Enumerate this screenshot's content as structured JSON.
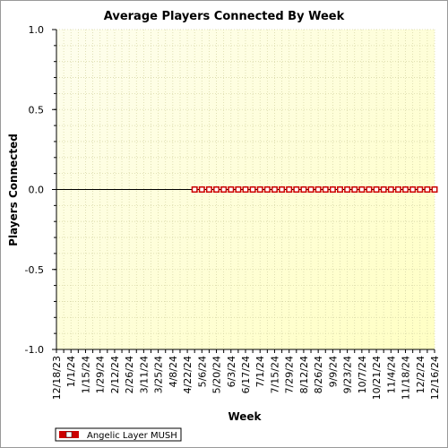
{
  "chart_data": {
    "type": "line",
    "title": "Average Players Connected By Week",
    "xlabel": "Week",
    "ylabel": "Players Connected",
    "ylim": [
      -1.0,
      1.0
    ],
    "yticks": [
      "1.0",
      "0.5",
      "0.0",
      "-0.5",
      "-1.0"
    ],
    "yticks_values": [
      1.0,
      0.5,
      0.0,
      -0.5,
      -1.0
    ],
    "grid": true,
    "legend_position": "bottom-left",
    "x": [
      "12/18/23",
      "12/25/23",
      "1/1/24",
      "1/8/24",
      "1/15/24",
      "1/22/24",
      "1/29/24",
      "2/5/24",
      "2/12/24",
      "2/19/24",
      "2/26/24",
      "3/4/24",
      "3/11/24",
      "3/18/24",
      "3/25/24",
      "4/1/24",
      "4/8/24",
      "4/15/24",
      "4/22/24",
      "4/29/24",
      "5/6/24",
      "5/13/24",
      "5/20/24",
      "5/27/24",
      "6/3/24",
      "6/10/24",
      "6/17/24",
      "6/24/24",
      "7/1/24",
      "7/8/24",
      "7/15/24",
      "7/22/24",
      "7/29/24",
      "8/5/24",
      "8/12/24",
      "8/19/24",
      "8/26/24",
      "9/2/24",
      "9/9/24",
      "9/16/24",
      "9/23/24",
      "9/30/24",
      "10/7/24",
      "10/14/24",
      "10/21/24",
      "10/28/24",
      "11/4/24",
      "11/11/24",
      "11/18/24",
      "11/25/24",
      "12/2/24",
      "12/9/24",
      "12/16/24"
    ],
    "x_labels_shown": [
      "12/18/23",
      "1/1/24",
      "1/15/24",
      "1/29/24",
      "2/12/24",
      "2/26/24",
      "3/11/24",
      "3/25/24",
      "4/8/24",
      "4/22/24",
      "5/6/24",
      "5/20/24",
      "6/3/24",
      "6/17/24",
      "7/1/24",
      "7/15/24",
      "7/29/24",
      "8/12/24",
      "8/26/24",
      "9/9/24",
      "9/23/24",
      "10/7/24",
      "10/21/24",
      "11/4/24",
      "11/18/24",
      "12/2/24",
      "12/16/24"
    ],
    "series": [
      {
        "name": "Angelic Layer MUSH",
        "color": "#cc0000",
        "marker": "square",
        "values": [
          0,
          0,
          0,
          0,
          0,
          0,
          0,
          0,
          0,
          0,
          0,
          0,
          0,
          0,
          0,
          0,
          0,
          0,
          0,
          0,
          0,
          0,
          0,
          0,
          0,
          0,
          0,
          0,
          0,
          0,
          0,
          0,
          0,
          0,
          0,
          0,
          0,
          0,
          0,
          0,
          0,
          0,
          0,
          0,
          0,
          0,
          0,
          0,
          0,
          0,
          0,
          0,
          0
        ],
        "first_marker_index": 19
      }
    ]
  },
  "colors": {
    "plot_bg_top": "#fdfde6",
    "plot_bg_bottom": "#ffffc8",
    "grid": "#d8d8a8",
    "line": "#000000",
    "marker": "#cc0000"
  }
}
